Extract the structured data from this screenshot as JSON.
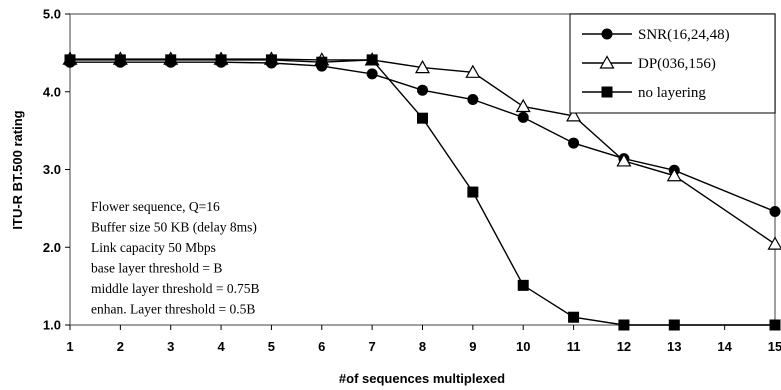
{
  "chart_data": {
    "type": "line",
    "title": "",
    "xlabel": "#of sequences multiplexed",
    "ylabel": "ITU-R BT.500 rating",
    "x": [
      1,
      2,
      3,
      4,
      5,
      6,
      7,
      8,
      9,
      10,
      11,
      12,
      13,
      14,
      15
    ],
    "xlim": [
      1,
      15
    ],
    "ylim": [
      1.0,
      5.0
    ],
    "x_ticks": [
      "1",
      "2",
      "3",
      "4",
      "5",
      "6",
      "7",
      "8",
      "9",
      "10",
      "11",
      "12",
      "13",
      "14",
      "15"
    ],
    "y_ticks": [
      "1.0",
      "2.0",
      "3.0",
      "4.0",
      "5.0"
    ],
    "grid": false,
    "legend_position": "top-right",
    "series": [
      {
        "name": "SNR(16,24,48)",
        "marker": "filled-circle",
        "points": [
          [
            1,
            4.38
          ],
          [
            2,
            4.38
          ],
          [
            3,
            4.38
          ],
          [
            4,
            4.38
          ],
          [
            5,
            4.37
          ],
          [
            6,
            4.33
          ],
          [
            7,
            4.23
          ],
          [
            8,
            4.02
          ],
          [
            9,
            3.9
          ],
          [
            10,
            3.67
          ],
          [
            11,
            3.34
          ],
          [
            12,
            3.14
          ],
          [
            13,
            2.99
          ],
          [
            15,
            2.46
          ]
        ]
      },
      {
        "name": "DP(036,156)",
        "marker": "open-triangle",
        "points": [
          [
            1,
            4.42
          ],
          [
            2,
            4.42
          ],
          [
            3,
            4.42
          ],
          [
            4,
            4.42
          ],
          [
            5,
            4.42
          ],
          [
            6,
            4.41
          ],
          [
            7,
            4.41
          ],
          [
            8,
            4.31
          ],
          [
            9,
            4.25
          ],
          [
            10,
            3.81
          ],
          [
            11,
            3.69
          ],
          [
            12,
            3.11
          ],
          [
            13,
            2.92
          ],
          [
            15,
            2.04
          ]
        ]
      },
      {
        "name": "no layering",
        "marker": "filled-square",
        "points": [
          [
            1,
            4.41
          ],
          [
            2,
            4.41
          ],
          [
            3,
            4.41
          ],
          [
            4,
            4.41
          ],
          [
            5,
            4.41
          ],
          [
            6,
            4.38
          ],
          [
            7,
            4.41
          ],
          [
            8,
            3.66
          ],
          [
            9,
            2.71
          ],
          [
            10,
            1.51
          ],
          [
            11,
            1.1
          ],
          [
            12,
            1.0
          ],
          [
            13,
            1.0
          ],
          [
            15,
            1.0
          ]
        ]
      }
    ],
    "annotations": [
      "Flower sequence, Q=16",
      "Buffer size 50 KB (delay 8ms)",
      "Link capacity 50 Mbps",
      "base layer threshold = B",
      "middle layer threshold = 0.75B",
      "enhan. Layer threshold = 0.5B"
    ]
  }
}
